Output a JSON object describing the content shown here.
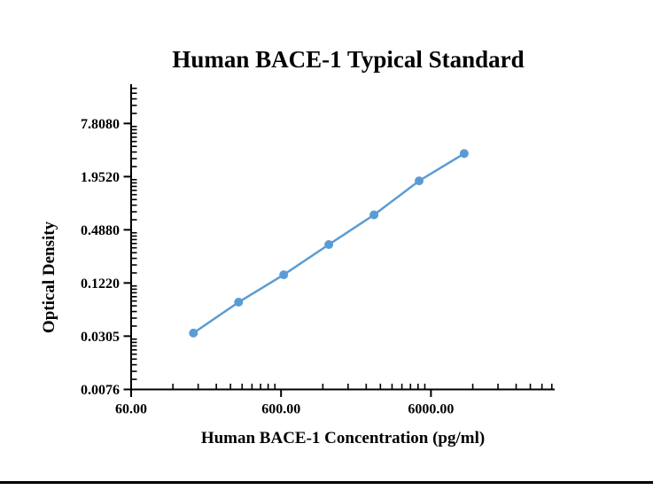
{
  "chart_data": {
    "type": "line",
    "title": "Human BACE-1 Typical Standard",
    "xlabel": "Human BACE-1 Concentration (pg/ml)",
    "ylabel": "Optical Density",
    "x_scale": "log",
    "y_scale": "log",
    "grid": false,
    "legend": false,
    "x_axis": {
      "major_ticks": [
        {
          "value": 60,
          "label": "60.00"
        },
        {
          "value": 600,
          "label": "600.00"
        },
        {
          "value": 6000,
          "label": "6000.00"
        }
      ],
      "range": [
        60,
        40000
      ],
      "minor_tick_style": "9 linear subdivisions between majors, ticks inside"
    },
    "y_axis": {
      "major_ticks": [
        {
          "value": 0.0076,
          "label": "0.0076"
        },
        {
          "value": 0.0305,
          "label": "0.0305"
        },
        {
          "value": 0.122,
          "label": "0.1220"
        },
        {
          "value": 0.488,
          "label": "0.4880"
        },
        {
          "value": 1.952,
          "label": "1.9520"
        },
        {
          "value": 7.808,
          "label": "7.8080"
        }
      ],
      "range": [
        0.0076,
        20
      ],
      "minor_tick_style": "9 linear subdivisions between majors, ticks inside"
    },
    "series": [
      {
        "name": "Typical Standard",
        "x": [
          156.25,
          312.5,
          625,
          1250,
          2500,
          5000,
          10000
        ],
        "y": [
          0.033,
          0.074,
          0.151,
          0.332,
          0.72,
          1.75,
          3.56
        ]
      }
    ],
    "line_color": "#5B9BD5",
    "marker_color": "#5B9BD5",
    "marker": "circle",
    "axis_color": "#000000",
    "text_color": "#000000"
  },
  "decor": {
    "bottom_rule_color": "#000000"
  }
}
